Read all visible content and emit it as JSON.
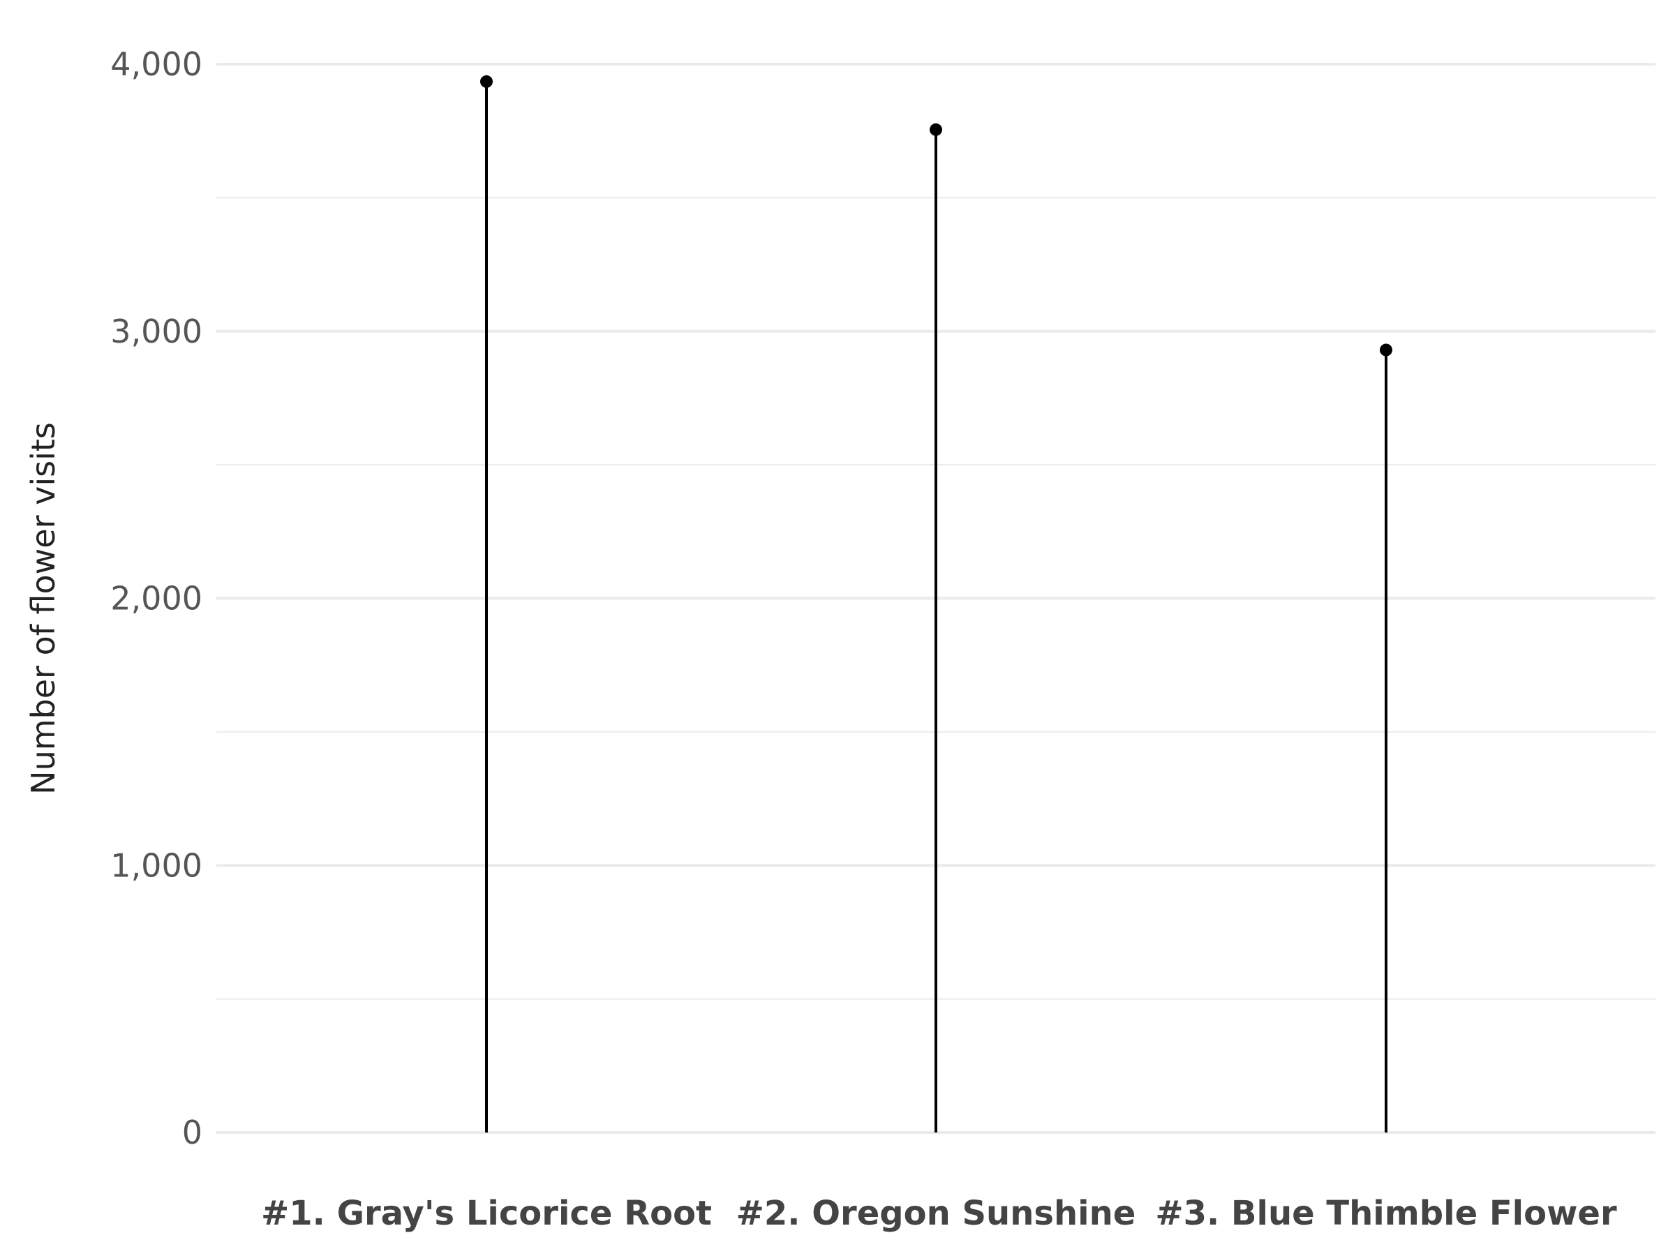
{
  "chart_data": {
    "type": "lollipop",
    "categories": [
      "#1. Gray's Licorice Root",
      "#2. Oregon Sunshine",
      "#3. Blue Thimble Flower"
    ],
    "series": [
      {
        "values": [
          3935,
          3755,
          2930
        ]
      }
    ],
    "ylabel": "Number of flower visits",
    "xlabel": "",
    "ylim": [
      0,
      4000
    ],
    "yticks": [
      0,
      1000,
      2000,
      3000,
      4000
    ],
    "ytick_labels": [
      "0",
      "1,000",
      "2,000",
      "3,000",
      "4,000"
    ],
    "grid": true,
    "legend": "none",
    "colors": {
      "stem": "#000000",
      "point": "#000000",
      "grid": "#ebebeb"
    }
  }
}
